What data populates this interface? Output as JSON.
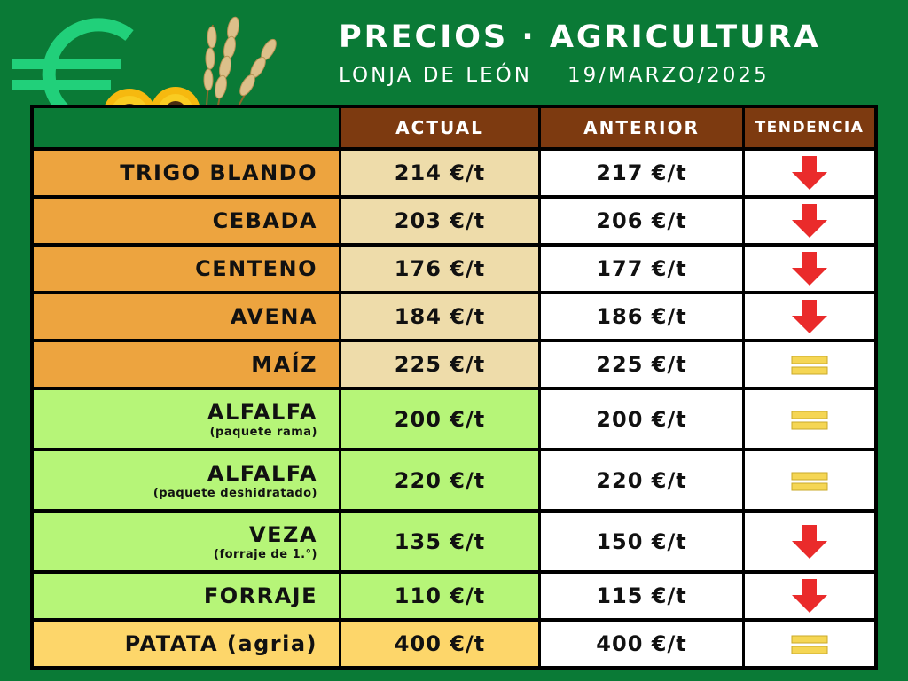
{
  "header": {
    "title": "PRECIOS · AGRICULTURA",
    "subtitle_market": "LONJA DE LEÓN",
    "subtitle_date": "19/MARZO/2025"
  },
  "table": {
    "columns": [
      "",
      "ACTUAL",
      "ANTERIOR",
      "TENDENCIA"
    ],
    "rows": [
      {
        "name": "TRIGO BLANDO",
        "note": "",
        "actual": "214 €/t",
        "anterior": "217 €/t",
        "trend": "down",
        "group": "cereal"
      },
      {
        "name": "CEBADA",
        "note": "",
        "actual": "203 €/t",
        "anterior": "206 €/t",
        "trend": "down",
        "group": "cereal"
      },
      {
        "name": "CENTENO",
        "note": "",
        "actual": "176 €/t",
        "anterior": "177 €/t",
        "trend": "down",
        "group": "cereal"
      },
      {
        "name": "AVENA",
        "note": "",
        "actual": "184 €/t",
        "anterior": "186 €/t",
        "trend": "down",
        "group": "cereal"
      },
      {
        "name": "MAÍZ",
        "note": "",
        "actual": "225 €/t",
        "anterior": "225 €/t",
        "trend": "equal",
        "group": "cereal"
      },
      {
        "name": "ALFALFA",
        "note": "(paquete rama)",
        "actual": "200 €/t",
        "anterior": "200 €/t",
        "trend": "equal",
        "group": "forage"
      },
      {
        "name": "ALFALFA",
        "note": "(paquete deshidratado)",
        "actual": "220 €/t",
        "anterior": "220 €/t",
        "trend": "equal",
        "group": "forage"
      },
      {
        "name": "VEZA",
        "note": "(forraje de 1.°)",
        "actual": "135 €/t",
        "anterior": "150 €/t",
        "trend": "down",
        "group": "forage"
      },
      {
        "name": "FORRAJE",
        "note": "",
        "actual": "110 €/t",
        "anterior": "115 €/t",
        "trend": "down",
        "group": "forage"
      },
      {
        "name": "PATATA (agria)",
        "note": "",
        "actual": "400 €/t",
        "anterior": "400 €/t",
        "trend": "equal",
        "group": "potato"
      }
    ]
  },
  "colors": {
    "background": "#0a7a36",
    "header_brown": "#7d3a10",
    "cereal_name": "#eda43f",
    "cereal_value": "#eedcaa",
    "forage": "#b6f578",
    "potato": "#fdd66a",
    "white_cell": "#ffffff",
    "arrow_down": "#ea2b2b",
    "equal_bars": "#f5d654"
  },
  "icons": {
    "logo": "euro-sign-with-sunflowers-and-wheat",
    "trend_down": "red-down-arrow-icon",
    "trend_equal": "yellow-equal-icon"
  }
}
